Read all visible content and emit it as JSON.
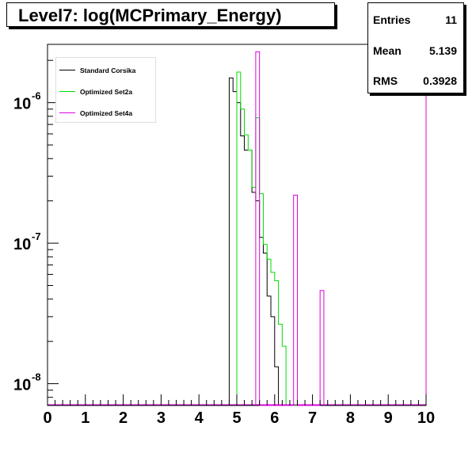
{
  "chart_data": {
    "type": "bar",
    "title": "Level7:  log(MCPrimary_Energy)",
    "xlabel": "",
    "ylabel": "",
    "xlim": [
      0,
      10
    ],
    "ylim": [
      7e-09,
      2.6e-06
    ],
    "yscale": "log",
    "grid": false,
    "legend_position": "top-left",
    "x_ticks": [
      "0",
      "1",
      "2",
      "3",
      "4",
      "5",
      "6",
      "7",
      "8",
      "9",
      "10"
    ],
    "y_ticks": [
      {
        "base": "10",
        "exp": "-6",
        "value": 1e-06
      },
      {
        "base": "10",
        "exp": "-7",
        "value": 1e-07
      },
      {
        "base": "10",
        "exp": "-8",
        "value": 1e-08
      }
    ],
    "stats": {
      "entries_label": "Entries",
      "entries": "11",
      "mean_label": "Mean",
      "mean": "5.139",
      "rms_label": "RMS",
      "rms": "0.3928"
    },
    "series": [
      {
        "name": "Standard Corsika",
        "color": "#000000",
        "bin_edges": [
          4.8,
          4.9,
          5.0,
          5.1,
          5.2,
          5.3,
          5.4,
          5.5,
          5.6,
          5.7,
          5.8,
          5.9,
          6.0,
          6.1,
          6.2,
          6.3,
          6.4,
          6.5,
          6.6,
          6.7,
          6.8,
          6.9,
          7.0
        ],
        "values": [
          1.5e-06,
          1.2e-06,
          1e-06,
          5.8e-07,
          4.6e-07,
          4.6e-07,
          2.3e-07,
          2e-07,
          1.1e-07,
          8.5e-08,
          4.2e-08,
          3e-08,
          1.32e-08,
          0,
          0,
          0,
          0,
          0,
          0,
          0,
          0,
          0
        ]
      },
      {
        "name": "Optimized Set2a",
        "color": "#00dd00",
        "bin_edges": [
          5.0,
          5.1,
          5.2,
          5.3,
          5.4,
          5.5,
          5.6,
          5.7,
          5.8,
          5.9,
          6.0,
          6.1,
          6.2,
          6.3,
          6.4,
          6.5,
          6.6,
          6.7,
          6.8
        ],
        "values": [
          1.65e-06,
          9e-07,
          5.9e-07,
          4.6e-07,
          2.5e-07,
          7.8e-07,
          2.25e-07,
          9.8e-08,
          7.7e-08,
          6.2e-08,
          5.4e-08,
          2.65e-08,
          1.85e-08,
          0,
          0,
          0,
          0,
          0
        ]
      },
      {
        "name": "Optimized Set4a",
        "color": "#dd00dd",
        "bin_edges": [
          5.5,
          5.6,
          5.7,
          6.5,
          6.6,
          7.2,
          7.3
        ],
        "values": [
          2.3e-06,
          0,
          0,
          2.2e-07,
          0,
          4.6e-08
        ]
      }
    ]
  }
}
